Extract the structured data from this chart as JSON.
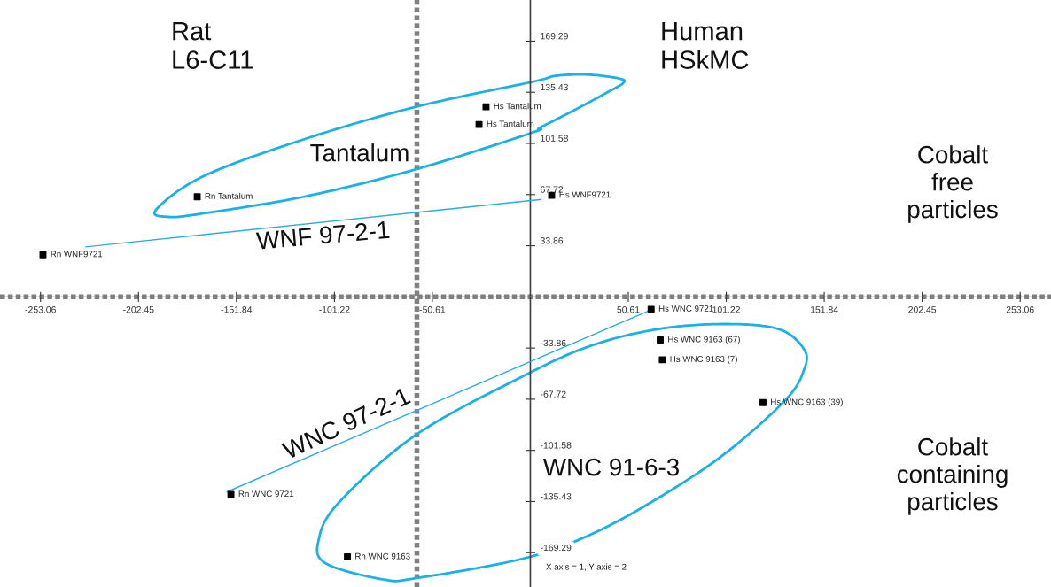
{
  "chart_data": {
    "type": "scatter",
    "xlim": [
      -274,
      269
    ],
    "ylim": [
      -192,
      196.5
    ],
    "xticks": [
      -253.06,
      -202.45,
      -151.84,
      -101.22,
      -50.61,
      50.61,
      101.22,
      151.84,
      202.45,
      253.06
    ],
    "yticks": [
      -169.29,
      -135.43,
      -101.58,
      -67.72,
      -33.86,
      33.86,
      67.72,
      101.58,
      135.43,
      169.29
    ],
    "grid": false,
    "series": [
      {
        "color": "#000000",
        "marker": "square",
        "x": [
          -172.1,
          -22.9,
          -26.5,
          11.0,
          -251.8,
          62.4,
          67.1,
          68.2,
          120.2,
          -154.7,
          -94.5
        ],
        "values": [
          66.3,
          125.8,
          114.1,
          67.2,
          27.9,
          -8.2,
          -28.5,
          -41.6,
          -70.0,
          -130.8,
          -172.1
        ]
      },
      {
        "type": "line",
        "color": "#29abe2",
        "x": [
          -229.6,
          5.4
        ],
        "values": [
          33.1,
          64.5
        ]
      },
      {
        "type": "line",
        "color": "#29abe2",
        "x": [
          -156.7,
          61.1
        ],
        "values": [
          -129.0,
          -9.3
        ]
      }
    ],
    "ref_lines": [
      {
        "axis": "x",
        "value": -58.6,
        "color": "#808080",
        "line_style": "dotted"
      },
      {
        "axis": "y",
        "value": 0,
        "color": "#7f7f7f",
        "line_style": "dotted"
      }
    ],
    "annotations": [
      "Rat\nL6-C11",
      "Human\nHSkMC",
      "Cobalt\nfree\nparticles",
      "Cobalt\ncontaining\nparticles",
      "X axis = 1, Y axis = 2",
      "Tantalum",
      "WNF 97-2-1",
      "WNC 97-2-1",
      "WNC 91-6-3",
      {
        "text": "Rn Tantalum",
        "x": -172.1,
        "y": 66.3
      },
      {
        "text": "Hs Tantalum",
        "x": -22.9,
        "y": 125.8
      },
      {
        "text": "Hs Tantalum",
        "x": -26.5,
        "y": 114.1
      },
      {
        "text": "Hs WNF9721",
        "x": 11.0,
        "y": 67.2
      },
      {
        "text": "Rn WNF9721",
        "x": -251.8,
        "y": 27.9
      },
      {
        "text": "Hs WNC 9721",
        "x": 62.4,
        "y": -8.2
      },
      {
        "text": "Hs WNC 9163 (67)",
        "x": 67.1,
        "y": -28.5
      },
      {
        "text": "Hs WNC 9163 (7)",
        "x": 68.2,
        "y": -41.6
      },
      {
        "text": "Hs WNC 9163 (39)",
        "x": 120.2,
        "y": -70.0
      },
      {
        "text": "Rn WNC 9721",
        "x": -154.7,
        "y": -130.8
      },
      {
        "text": "Rn WNC 9163",
        "x": -94.5,
        "y": -172.1
      }
    ]
  }
}
